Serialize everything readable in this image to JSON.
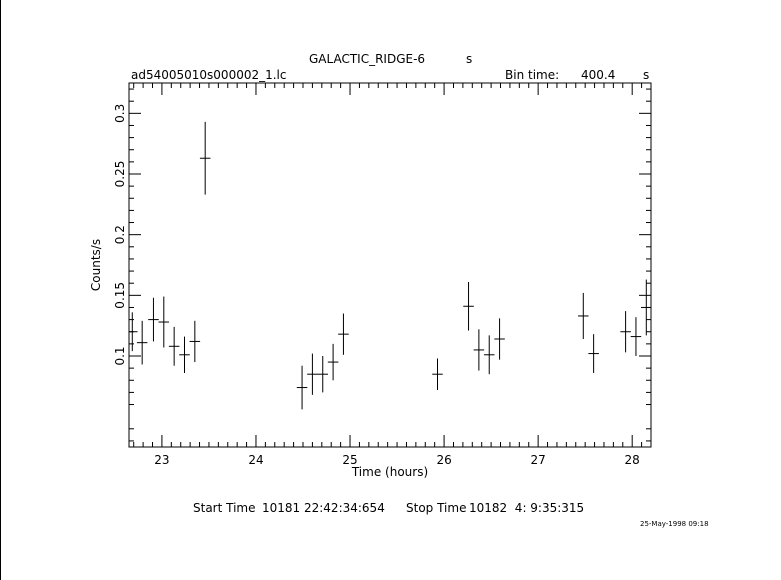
{
  "header": {
    "object_name": "GALACTIC_RIDGE-6",
    "object_unit": "s",
    "file_name": "ad54005010s000002_1.lc",
    "bin_label": "Bin time:",
    "bin_value": "400.4",
    "bin_unit": "s"
  },
  "footer": {
    "start_label": "Start Time",
    "start_value": "10181 22:42:34:654",
    "stop_label": "Stop Time",
    "stop_value": "10182  4: 9:35:315",
    "stamp": "25-May-1998 09:18"
  },
  "chart_data": {
    "type": "scatter",
    "xlabel": "Time (hours)",
    "ylabel": "Counts/s",
    "xlim": [
      22.65,
      28.2
    ],
    "ylim": [
      0.025,
      0.325
    ],
    "x_ticks": [
      23,
      24,
      25,
      26,
      27,
      28
    ],
    "y_ticks": [
      0.1,
      0.15,
      0.2,
      0.25,
      0.3
    ],
    "y_tick_labels": [
      "0.1",
      "0.15",
      "0.2",
      "0.25",
      "0.3"
    ],
    "x_bin_halfwidth": 0.056,
    "points": [
      {
        "x": 22.685,
        "y": 0.12,
        "err": 0.016
      },
      {
        "x": 22.79,
        "y": 0.111,
        "err": 0.018
      },
      {
        "x": 22.91,
        "y": 0.13,
        "err": 0.018
      },
      {
        "x": 23.02,
        "y": 0.128,
        "err": 0.021
      },
      {
        "x": 23.13,
        "y": 0.108,
        "err": 0.016
      },
      {
        "x": 23.24,
        "y": 0.101,
        "err": 0.015
      },
      {
        "x": 23.35,
        "y": 0.112,
        "err": 0.017
      },
      {
        "x": 23.46,
        "y": 0.263,
        "err": 0.03
      },
      {
        "x": 24.49,
        "y": 0.074,
        "err": 0.018
      },
      {
        "x": 24.6,
        "y": 0.085,
        "err": 0.017
      },
      {
        "x": 24.71,
        "y": 0.085,
        "err": 0.015
      },
      {
        "x": 24.82,
        "y": 0.095,
        "err": 0.015
      },
      {
        "x": 24.93,
        "y": 0.118,
        "err": 0.017
      },
      {
        "x": 25.93,
        "y": 0.085,
        "err": 0.013
      },
      {
        "x": 26.26,
        "y": 0.141,
        "err": 0.02
      },
      {
        "x": 26.37,
        "y": 0.105,
        "err": 0.017
      },
      {
        "x": 26.48,
        "y": 0.101,
        "err": 0.016
      },
      {
        "x": 26.59,
        "y": 0.114,
        "err": 0.017
      },
      {
        "x": 27.48,
        "y": 0.133,
        "err": 0.019
      },
      {
        "x": 27.59,
        "y": 0.102,
        "err": 0.016
      },
      {
        "x": 27.93,
        "y": 0.12,
        "err": 0.017
      },
      {
        "x": 28.04,
        "y": 0.116,
        "err": 0.016
      },
      {
        "x": 28.15,
        "y": 0.14,
        "err": 0.023
      }
    ]
  }
}
